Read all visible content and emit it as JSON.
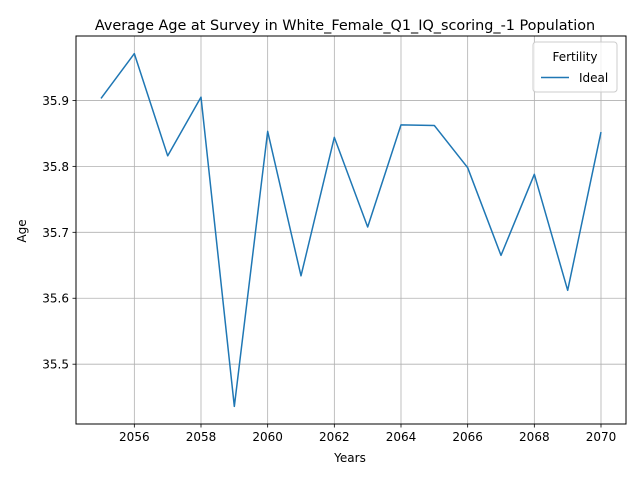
{
  "chart_data": {
    "type": "line",
    "title": "Average Age at Survey in White_Female_Q1_IQ_scoring_-1 Population",
    "xlabel": "Years",
    "ylabel": "Age",
    "x": [
      2055,
      2056,
      2057,
      2058,
      2059,
      2060,
      2061,
      2062,
      2063,
      2064,
      2065,
      2066,
      2067,
      2068,
      2069,
      2070
    ],
    "series": [
      {
        "name": "Ideal",
        "color": "#1f77b4",
        "values": [
          35.903,
          35.971,
          35.816,
          35.905,
          35.436,
          35.853,
          35.634,
          35.844,
          35.708,
          35.863,
          35.862,
          35.798,
          35.665,
          35.788,
          35.612,
          35.852
        ]
      }
    ],
    "xlim": [
      2054.25,
      2070.75
    ],
    "ylim": [
      35.4093,
      35.9977
    ],
    "xticks": [
      2056,
      2058,
      2060,
      2062,
      2064,
      2066,
      2068,
      2070
    ],
    "xtick_labels": [
      "2056",
      "2058",
      "2060",
      "2062",
      "2064",
      "2066",
      "2068",
      "2070"
    ],
    "yticks": [
      35.5,
      35.6,
      35.7,
      35.8,
      35.9
    ],
    "ytick_labels": [
      "35.5",
      "35.6",
      "35.7",
      "35.8",
      "35.9"
    ],
    "grid": true,
    "legend": {
      "title": "Fertility",
      "position": "top-right"
    }
  }
}
